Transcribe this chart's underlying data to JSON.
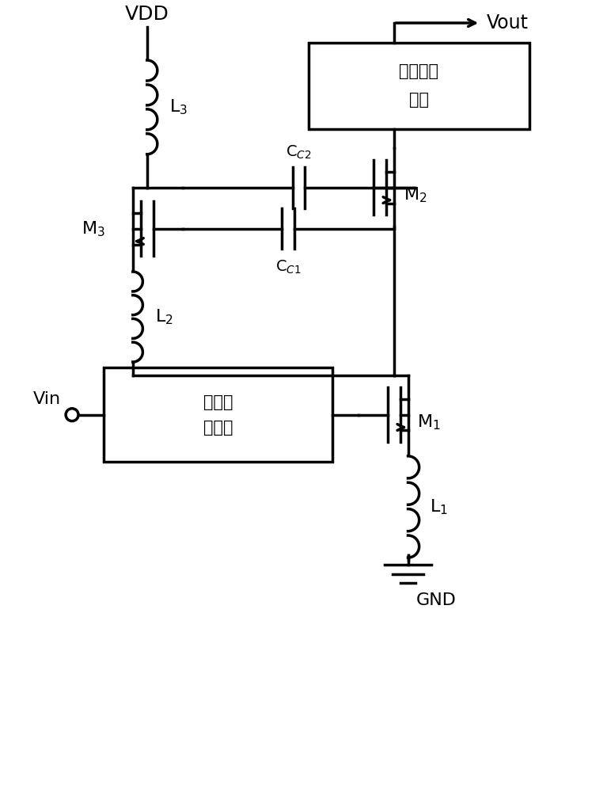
{
  "bg_color": "#ffffff",
  "line_color": "#000000",
  "lw": 2.5,
  "fig_w": 7.67,
  "fig_h": 10.0,
  "labels": {
    "VDD": "VDD",
    "GND": "GND",
    "Vout": "Vout",
    "Vin": "Vin",
    "L1": "L$_1$",
    "L2": "L$_2$",
    "L3": "L$_3$",
    "M1": "M$_1$",
    "M2": "M$_2$",
    "M3": "M$_3$",
    "CC1": "C$_{C1}$",
    "CC2": "C$_{C2}$",
    "box1_line1": "第一匹",
    "box1_line2": "配网络",
    "box2_line1": "第二匹配",
    "box2_line2": "网络"
  }
}
